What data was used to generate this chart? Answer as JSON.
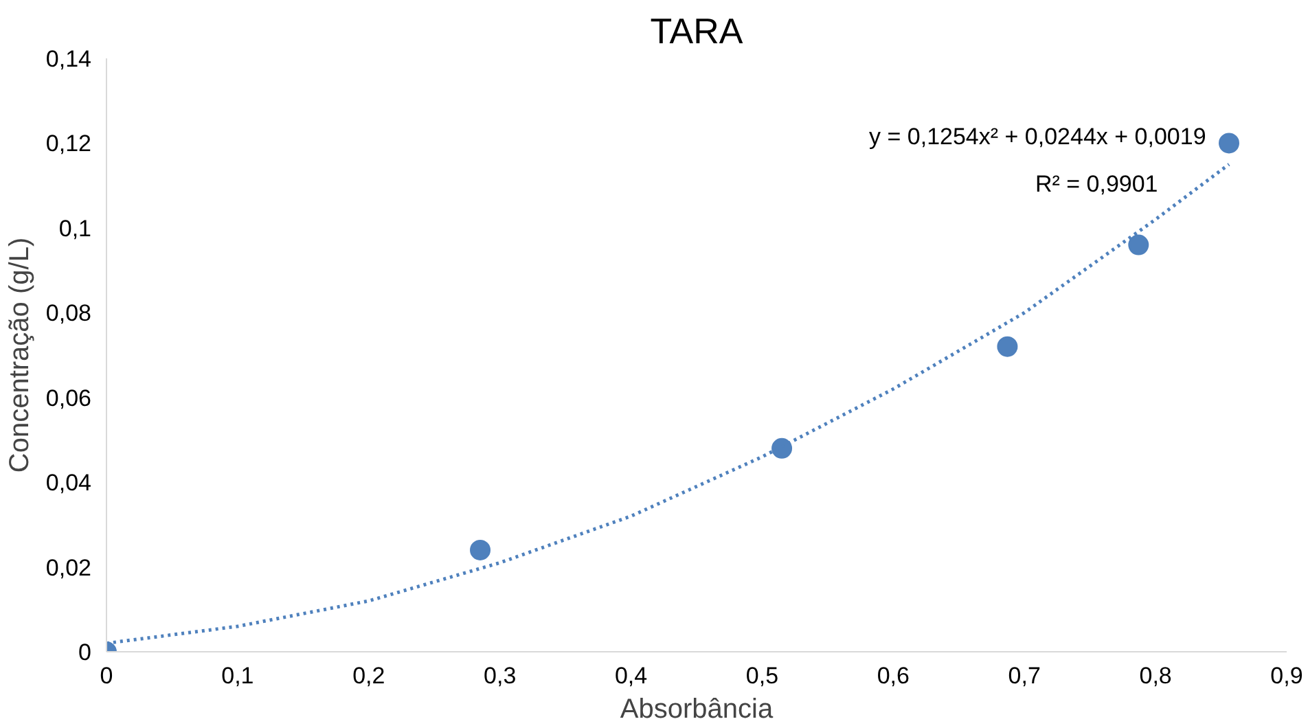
{
  "chart_data": {
    "type": "scatter",
    "title": "TARA",
    "xlabel": "Absorbância",
    "ylabel": "Concentração (g/L)",
    "annotations": [
      "y = 0,1254x² + 0,0244x + 0,0019",
      "R² = 0,9901"
    ],
    "x": [
      0,
      0.285,
      0.515,
      0.687,
      0.787,
      0.856
    ],
    "series": [
      {
        "type": "scatter",
        "color": "#4f81bd",
        "marker": "circle",
        "values": [
          0,
          0.024,
          0.048,
          0.072,
          0.096,
          0.12
        ]
      },
      {
        "type": "line",
        "color": "#4f81bd",
        "line_style": "dotted",
        "marker": "none",
        "x": [
          0,
          0.1,
          0.2,
          0.3,
          0.4,
          0.5,
          0.6,
          0.7,
          0.8,
          0.856
        ],
        "values": [
          0.002,
          0.006,
          0.012,
          0.021,
          0.032,
          0.046,
          0.062,
          0.08,
          0.102,
          0.115
        ]
      }
    ],
    "xlim": [
      0,
      0.9
    ],
    "ylim": [
      0,
      0.14
    ],
    "xticks": [
      0,
      {
        "value": 0.1,
        "label": "0,1"
      },
      {
        "value": 0.2,
        "label": "0,2"
      },
      {
        "value": 0.3,
        "label": "0,3"
      },
      {
        "value": 0.4,
        "label": "0,4"
      },
      {
        "value": 0.5,
        "label": "0,5"
      },
      {
        "value": 0.6,
        "label": "0,6"
      },
      {
        "value": 0.7,
        "label": "0,7"
      },
      {
        "value": 0.8,
        "label": "0,8"
      },
      {
        "value": 0.9,
        "label": "0,9"
      }
    ],
    "yticks": [
      0,
      {
        "value": 0.02,
        "label": "0,02"
      },
      {
        "value": 0.04,
        "label": "0,04"
      },
      {
        "value": 0.06,
        "label": "0,06"
      },
      {
        "value": 0.08,
        "label": "0,08"
      },
      {
        "value": 0.1,
        "label": "0,1"
      },
      {
        "value": 0.12,
        "label": "0,12"
      },
      {
        "value": 0.14,
        "label": "0,14"
      }
    ],
    "grid": false
  }
}
